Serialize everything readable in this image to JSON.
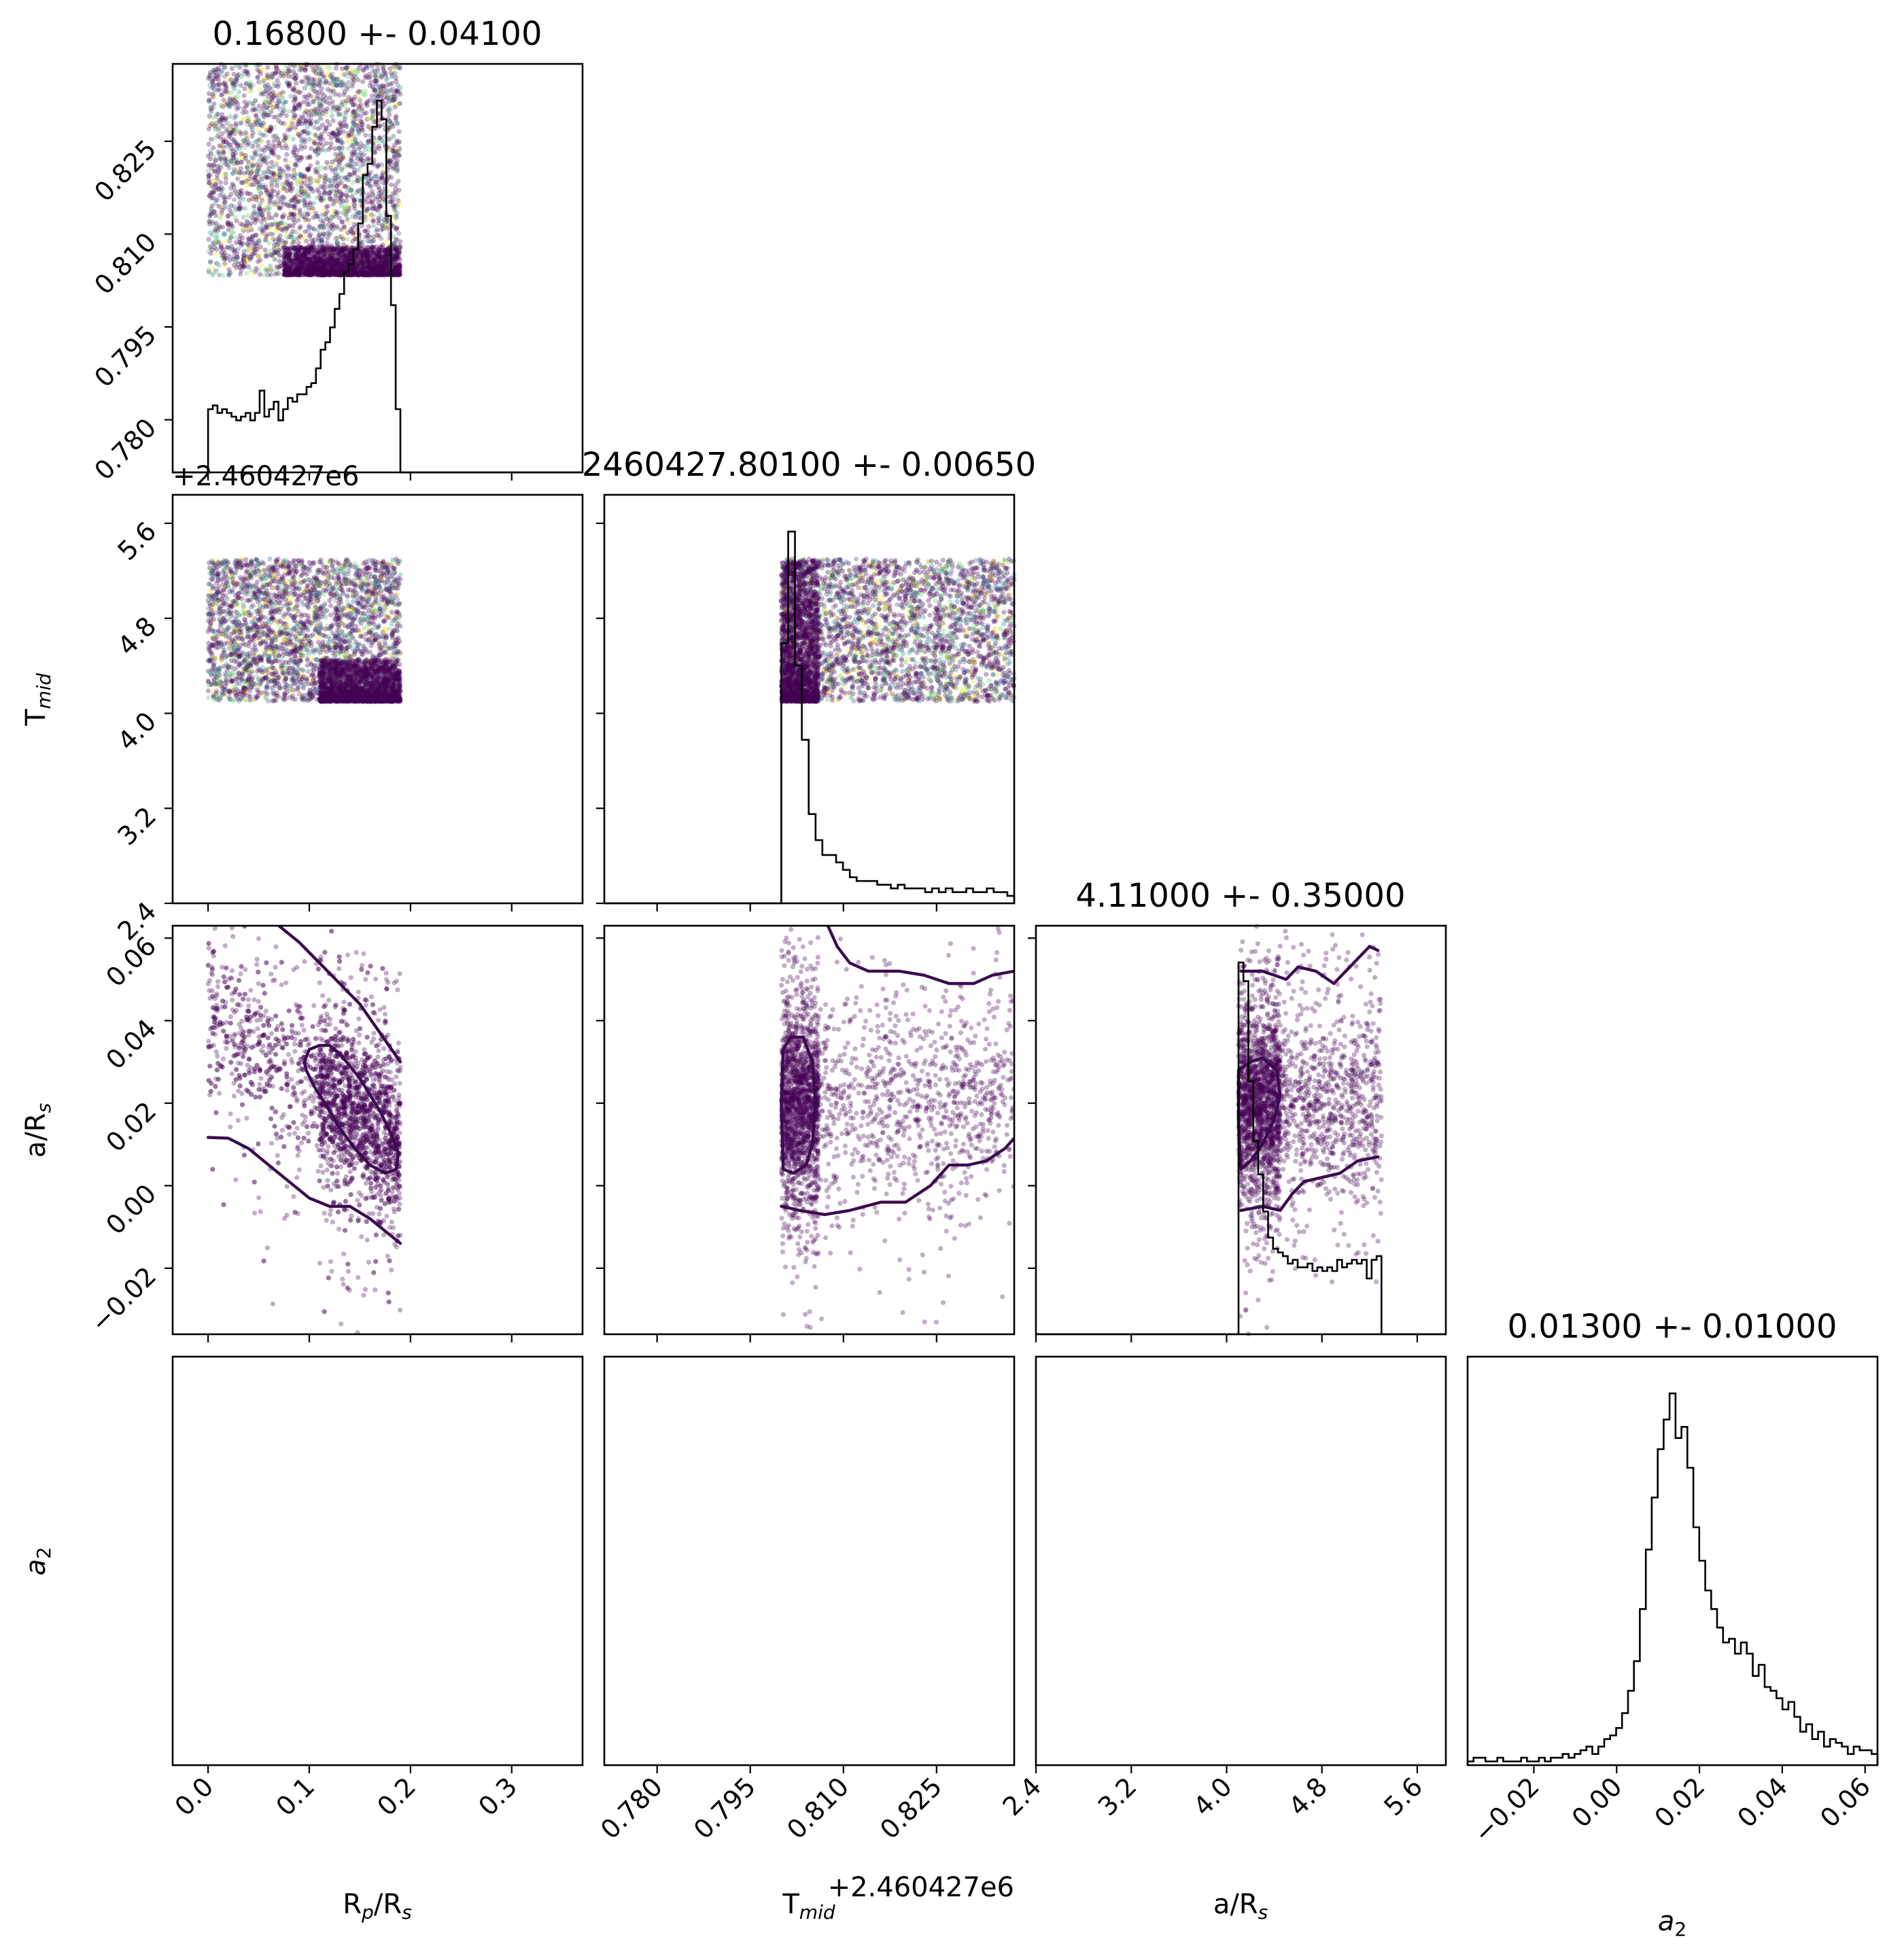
{
  "chart_data": {
    "type": "corner",
    "colors": {
      "density": "#440154",
      "scatter_colormap": [
        "#440154",
        "#3b528b",
        "#21918c",
        "#5ec962",
        "#fde725"
      ],
      "contour": "#3b0a4f",
      "line": "#000000"
    },
    "parameters": [
      {
        "key": "rp",
        "label": "R",
        "sub": "p",
        "label_rest": "/R",
        "sub2": "s",
        "range": [
          -0.035,
          0.37
        ],
        "ticks": [
          0.0,
          0.1,
          0.2,
          0.3
        ],
        "tick_labels": [
          "0.0",
          "0.1",
          "0.2",
          "0.3"
        ]
      },
      {
        "key": "tmid",
        "label": "T",
        "sub": "mid",
        "range": [
          0.7715,
          0.8375
        ],
        "ticks": [
          0.78,
          0.795,
          0.81,
          0.825
        ],
        "tick_labels": [
          "0.780",
          "0.795",
          "0.810",
          "0.825"
        ],
        "offset": "+2.460427e6"
      },
      {
        "key": "ars",
        "label": "a/R",
        "sub": "s",
        "range": [
          2.4,
          5.84
        ],
        "ticks": [
          2.4,
          3.2,
          4.0,
          4.8,
          5.6
        ],
        "tick_labels": [
          "2.4",
          "3.2",
          "4.0",
          "4.8",
          "5.6"
        ]
      },
      {
        "key": "a2",
        "label": "a",
        "sub": "2",
        "range": [
          -0.036,
          0.063
        ],
        "ticks": [
          -0.02,
          0.0,
          0.02,
          0.04,
          0.06
        ],
        "tick_labels": [
          "−0.02",
          "0.00",
          "0.02",
          "0.04",
          "0.06"
        ]
      }
    ],
    "titles": [
      "0.16800 +- 0.04100",
      "2460427.80100 +- 0.00650",
      "4.11000 +- 0.35000",
      "0.01300 +- 0.01000"
    ],
    "axis_labels": {
      "x": [
        {
          "main": "R",
          "sub": "p",
          "main2": "/R",
          "sub2": "s"
        },
        {
          "main": "T",
          "sub": "mid"
        },
        {
          "main": "a/R",
          "sub": "s"
        },
        {
          "main": "a",
          "sub": "2"
        }
      ],
      "y": [
        {
          "main": "T",
          "sub": "mid"
        },
        {
          "main": "a/R",
          "sub": "s"
        },
        {
          "main": "a",
          "sub": "2"
        }
      ]
    },
    "offsets": {
      "x_tmid": "+2.460427e6",
      "y_tmid": "+2.460427e6"
    },
    "histograms": [
      {
        "param": "rp",
        "x_start": 0.0,
        "x_end": 0.19,
        "peak_at": 0.168,
        "values": [
          0.17,
          0.18,
          0.16,
          0.17,
          0.16,
          0.15,
          0.14,
          0.15,
          0.16,
          0.14,
          0.16,
          0.22,
          0.15,
          0.17,
          0.19,
          0.14,
          0.17,
          0.2,
          0.19,
          0.21,
          0.21,
          0.23,
          0.24,
          0.28,
          0.33,
          0.35,
          0.39,
          0.44,
          0.48,
          0.54,
          0.56,
          0.6,
          0.67,
          0.8,
          0.83,
          0.93,
          1.0,
          0.95,
          0.69,
          0.45,
          0.17
        ]
      },
      {
        "param": "tmid",
        "x_start": 0.8,
        "x_end": 0.8375,
        "peak_at": 0.801,
        "values": [
          0.7,
          1.0,
          0.64,
          0.44,
          0.24,
          0.17,
          0.13,
          0.13,
          0.11,
          0.09,
          0.07,
          0.06,
          0.06,
          0.06,
          0.05,
          0.05,
          0.04,
          0.05,
          0.04,
          0.04,
          0.04,
          0.03,
          0.04,
          0.03,
          0.04,
          0.03,
          0.03,
          0.04,
          0.03,
          0.03,
          0.04,
          0.03,
          0.03,
          0.02
        ]
      },
      {
        "param": "ars",
        "x_start": 4.1,
        "x_end": 5.3,
        "peak_at": 4.11,
        "values": [
          1.0,
          0.95,
          0.68,
          0.52,
          0.43,
          0.33,
          0.26,
          0.23,
          0.22,
          0.21,
          0.19,
          0.2,
          0.18,
          0.18,
          0.19,
          0.17,
          0.18,
          0.17,
          0.18,
          0.17,
          0.2,
          0.18,
          0.19,
          0.2,
          0.19,
          0.2,
          0.15,
          0.2,
          0.21
        ]
      },
      {
        "param": "a2",
        "x_start": -0.036,
        "x_end": 0.063,
        "peak_at": 0.013,
        "values": [
          0.01,
          0.02,
          0.02,
          0.01,
          0.01,
          0.02,
          0.01,
          0.01,
          0.01,
          0.02,
          0.01,
          0.01,
          0.02,
          0.01,
          0.02,
          0.02,
          0.03,
          0.02,
          0.03,
          0.04,
          0.05,
          0.03,
          0.05,
          0.07,
          0.08,
          0.1,
          0.14,
          0.2,
          0.28,
          0.42,
          0.58,
          0.72,
          0.85,
          0.93,
          1.0,
          0.88,
          0.91,
          0.8,
          0.64,
          0.55,
          0.47,
          0.42,
          0.37,
          0.33,
          0.34,
          0.3,
          0.33,
          0.3,
          0.24,
          0.27,
          0.21,
          0.2,
          0.18,
          0.15,
          0.17,
          0.13,
          0.09,
          0.11,
          0.07,
          0.09,
          0.05,
          0.07,
          0.06,
          0.05,
          0.03,
          0.05,
          0.04,
          0.04,
          0.03
        ]
      }
    ],
    "scatter_panels": [
      {
        "x": "rp",
        "y": "tmid",
        "x_range": [
          0.0,
          0.19
        ],
        "y_range": [
          0.8033,
          0.8375
        ],
        "dense_band": {
          "x": [
            0.075,
            0.19
          ],
          "y": [
            0.8034,
            0.808
          ]
        }
      },
      {
        "x": "rp",
        "y": "ars",
        "x_range": [
          0.0,
          0.19
        ],
        "y_range": [
          4.1,
          5.3
        ],
        "dense_band": {
          "x": [
            0.11,
            0.19
          ],
          "y": [
            4.1,
            4.45
          ]
        }
      },
      {
        "x": "tmid",
        "y": "ars",
        "x_range": [
          0.8,
          0.8375
        ],
        "y_range": [
          4.1,
          5.3
        ],
        "dense_band": {
          "x": [
            0.8,
            0.806
          ],
          "y": [
            4.1,
            5.3
          ]
        }
      },
      {
        "x": "rp",
        "y": "a2",
        "x_range": [
          0.0,
          0.19
        ],
        "y_range": [
          -0.036,
          0.063
        ],
        "trend": "negative"
      },
      {
        "x": "tmid",
        "y": "a2",
        "x_range": [
          0.8,
          0.8375
        ],
        "y_range": [
          -0.036,
          0.063
        ],
        "trend": "none"
      },
      {
        "x": "ars",
        "y": "a2",
        "x_range": [
          4.1,
          5.3
        ],
        "y_range": [
          -0.036,
          0.063
        ],
        "trend": "none"
      }
    ],
    "contours": [
      {
        "panel": "rp-a2",
        "lines": [
          [
            [
              0.07,
              0.063
            ],
            [
              0.09,
              0.059
            ],
            [
              0.11,
              0.054
            ],
            [
              0.13,
              0.049
            ],
            [
              0.15,
              0.044
            ],
            [
              0.17,
              0.037
            ],
            [
              0.19,
              0.03
            ]
          ],
          [
            [
              0.0,
              0.0117
            ],
            [
              0.02,
              0.0115
            ],
            [
              0.04,
              0.009
            ],
            [
              0.06,
              0.005
            ],
            [
              0.08,
              0.001
            ],
            [
              0.1,
              -0.003
            ],
            [
              0.12,
              -0.005
            ],
            [
              0.14,
              -0.005
            ],
            [
              0.16,
              -0.008
            ],
            [
              0.18,
              -0.012
            ],
            [
              0.19,
              -0.014
            ]
          ],
          [
            [
              0.095,
              0.03
            ],
            [
              0.1,
              0.033
            ],
            [
              0.11,
              0.034
            ],
            [
              0.12,
              0.034
            ],
            [
              0.13,
              0.032
            ],
            [
              0.14,
              0.029
            ],
            [
              0.15,
              0.026
            ],
            [
              0.16,
              0.022
            ],
            [
              0.17,
              0.018
            ],
            [
              0.18,
              0.013
            ],
            [
              0.188,
              0.008
            ],
            [
              0.186,
              0.004
            ],
            [
              0.175,
              0.003
            ],
            [
              0.16,
              0.005
            ],
            [
              0.145,
              0.009
            ],
            [
              0.13,
              0.014
            ],
            [
              0.118,
              0.019
            ],
            [
              0.105,
              0.024
            ],
            [
              0.097,
              0.028
            ],
            [
              0.095,
              0.03
            ]
          ]
        ]
      },
      {
        "panel": "tmid-a2",
        "lines": [
          [
            [
              0.8075,
              0.063
            ],
            [
              0.809,
              0.058
            ],
            [
              0.811,
              0.054
            ],
            [
              0.814,
              0.052
            ],
            [
              0.819,
              0.052
            ],
            [
              0.823,
              0.051
            ],
            [
              0.827,
              0.049
            ],
            [
              0.831,
              0.049
            ],
            [
              0.834,
              0.051
            ],
            [
              0.8375,
              0.052
            ]
          ],
          [
            [
              0.8,
              -0.005
            ],
            [
              0.803,
              -0.006
            ],
            [
              0.807,
              -0.007
            ],
            [
              0.811,
              -0.006
            ],
            [
              0.816,
              -0.004
            ],
            [
              0.82,
              -0.004
            ],
            [
              0.824,
              0.0
            ],
            [
              0.827,
              0.005
            ],
            [
              0.83,
              0.005
            ],
            [
              0.833,
              0.006
            ],
            [
              0.836,
              0.009
            ],
            [
              0.8375,
              0.0115
            ]
          ],
          [
            [
              0.8003,
              0.033
            ],
            [
              0.8015,
              0.036
            ],
            [
              0.8035,
              0.036
            ],
            [
              0.805,
              0.03
            ],
            [
              0.8055,
              0.02
            ],
            [
              0.805,
              0.01
            ],
            [
              0.804,
              0.005
            ],
            [
              0.802,
              0.003
            ],
            [
              0.8003,
              0.004
            ],
            [
              0.8,
              0.02
            ],
            [
              0.8003,
              0.033
            ]
          ]
        ]
      },
      {
        "panel": "ars-a2",
        "lines": [
          [
            [
              4.12,
              0.052
            ],
            [
              4.3,
              0.052
            ],
            [
              4.4,
              0.051
            ],
            [
              4.5,
              0.05
            ],
            [
              4.6,
              0.053
            ],
            [
              4.75,
              0.052
            ],
            [
              4.9,
              0.049
            ],
            [
              5.0,
              0.052
            ],
            [
              5.1,
              0.055
            ],
            [
              5.2,
              0.058
            ],
            [
              5.27,
              0.057
            ]
          ],
          [
            [
              4.12,
              -0.006
            ],
            [
              4.3,
              -0.005
            ],
            [
              4.45,
              -0.006
            ],
            [
              4.55,
              -0.002
            ],
            [
              4.65,
              0.001
            ],
            [
              4.8,
              0.002
            ],
            [
              4.95,
              0.003
            ],
            [
              5.1,
              0.006
            ],
            [
              5.27,
              0.007
            ]
          ],
          [
            [
              4.1,
              0.028
            ],
            [
              4.2,
              0.03
            ],
            [
              4.3,
              0.031
            ],
            [
              4.42,
              0.028
            ],
            [
              4.45,
              0.022
            ],
            [
              4.4,
              0.016
            ],
            [
              4.3,
              0.01
            ],
            [
              4.2,
              0.006
            ],
            [
              4.12,
              0.004
            ],
            [
              4.1,
              0.015
            ],
            [
              4.1,
              0.028
            ]
          ]
        ]
      }
    ]
  }
}
